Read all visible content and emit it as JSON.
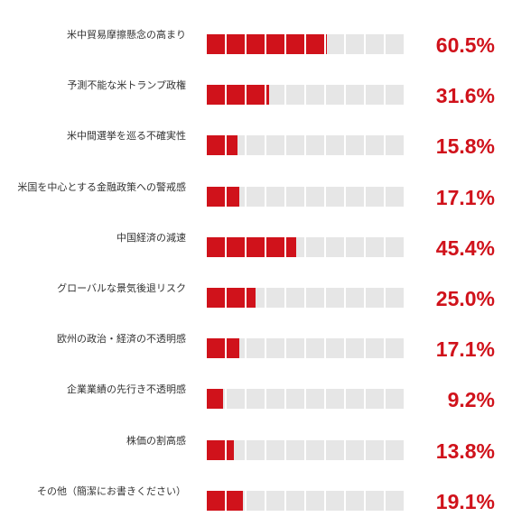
{
  "chart_data": {
    "type": "bar",
    "categories": [
      "米中貿易摩擦懸念の高まり",
      "予測不能な米トランプ政権",
      "米中間選挙を巡る不確実性",
      "米国を中心とする金融政策への警戒感",
      "中国経済の減速",
      "グローバルな景気後退リスク",
      "欧州の政治・経済の不透明感",
      "企業業績の先行き不透明感",
      "株価の割高感",
      "その他（簡潔にお書きください）"
    ],
    "values": [
      60.5,
      31.6,
      15.8,
      17.1,
      45.4,
      25.0,
      17.1,
      9.2,
      13.8,
      19.1
    ],
    "value_labels": [
      "60.5%",
      "31.6%",
      "15.8%",
      "17.1%",
      "45.4%",
      "25.0%",
      "17.1%",
      "9.2%",
      "13.8%",
      "19.1%"
    ],
    "segments": 10,
    "segment_unit": 10,
    "xlim": [
      0,
      100
    ],
    "title": "",
    "xlabel": "",
    "ylabel": "",
    "grid": false,
    "colors": {
      "fill": "#d0121b",
      "empty": "#e6e6e6",
      "value_text": "#d0121b",
      "label_text": "#333333"
    }
  }
}
